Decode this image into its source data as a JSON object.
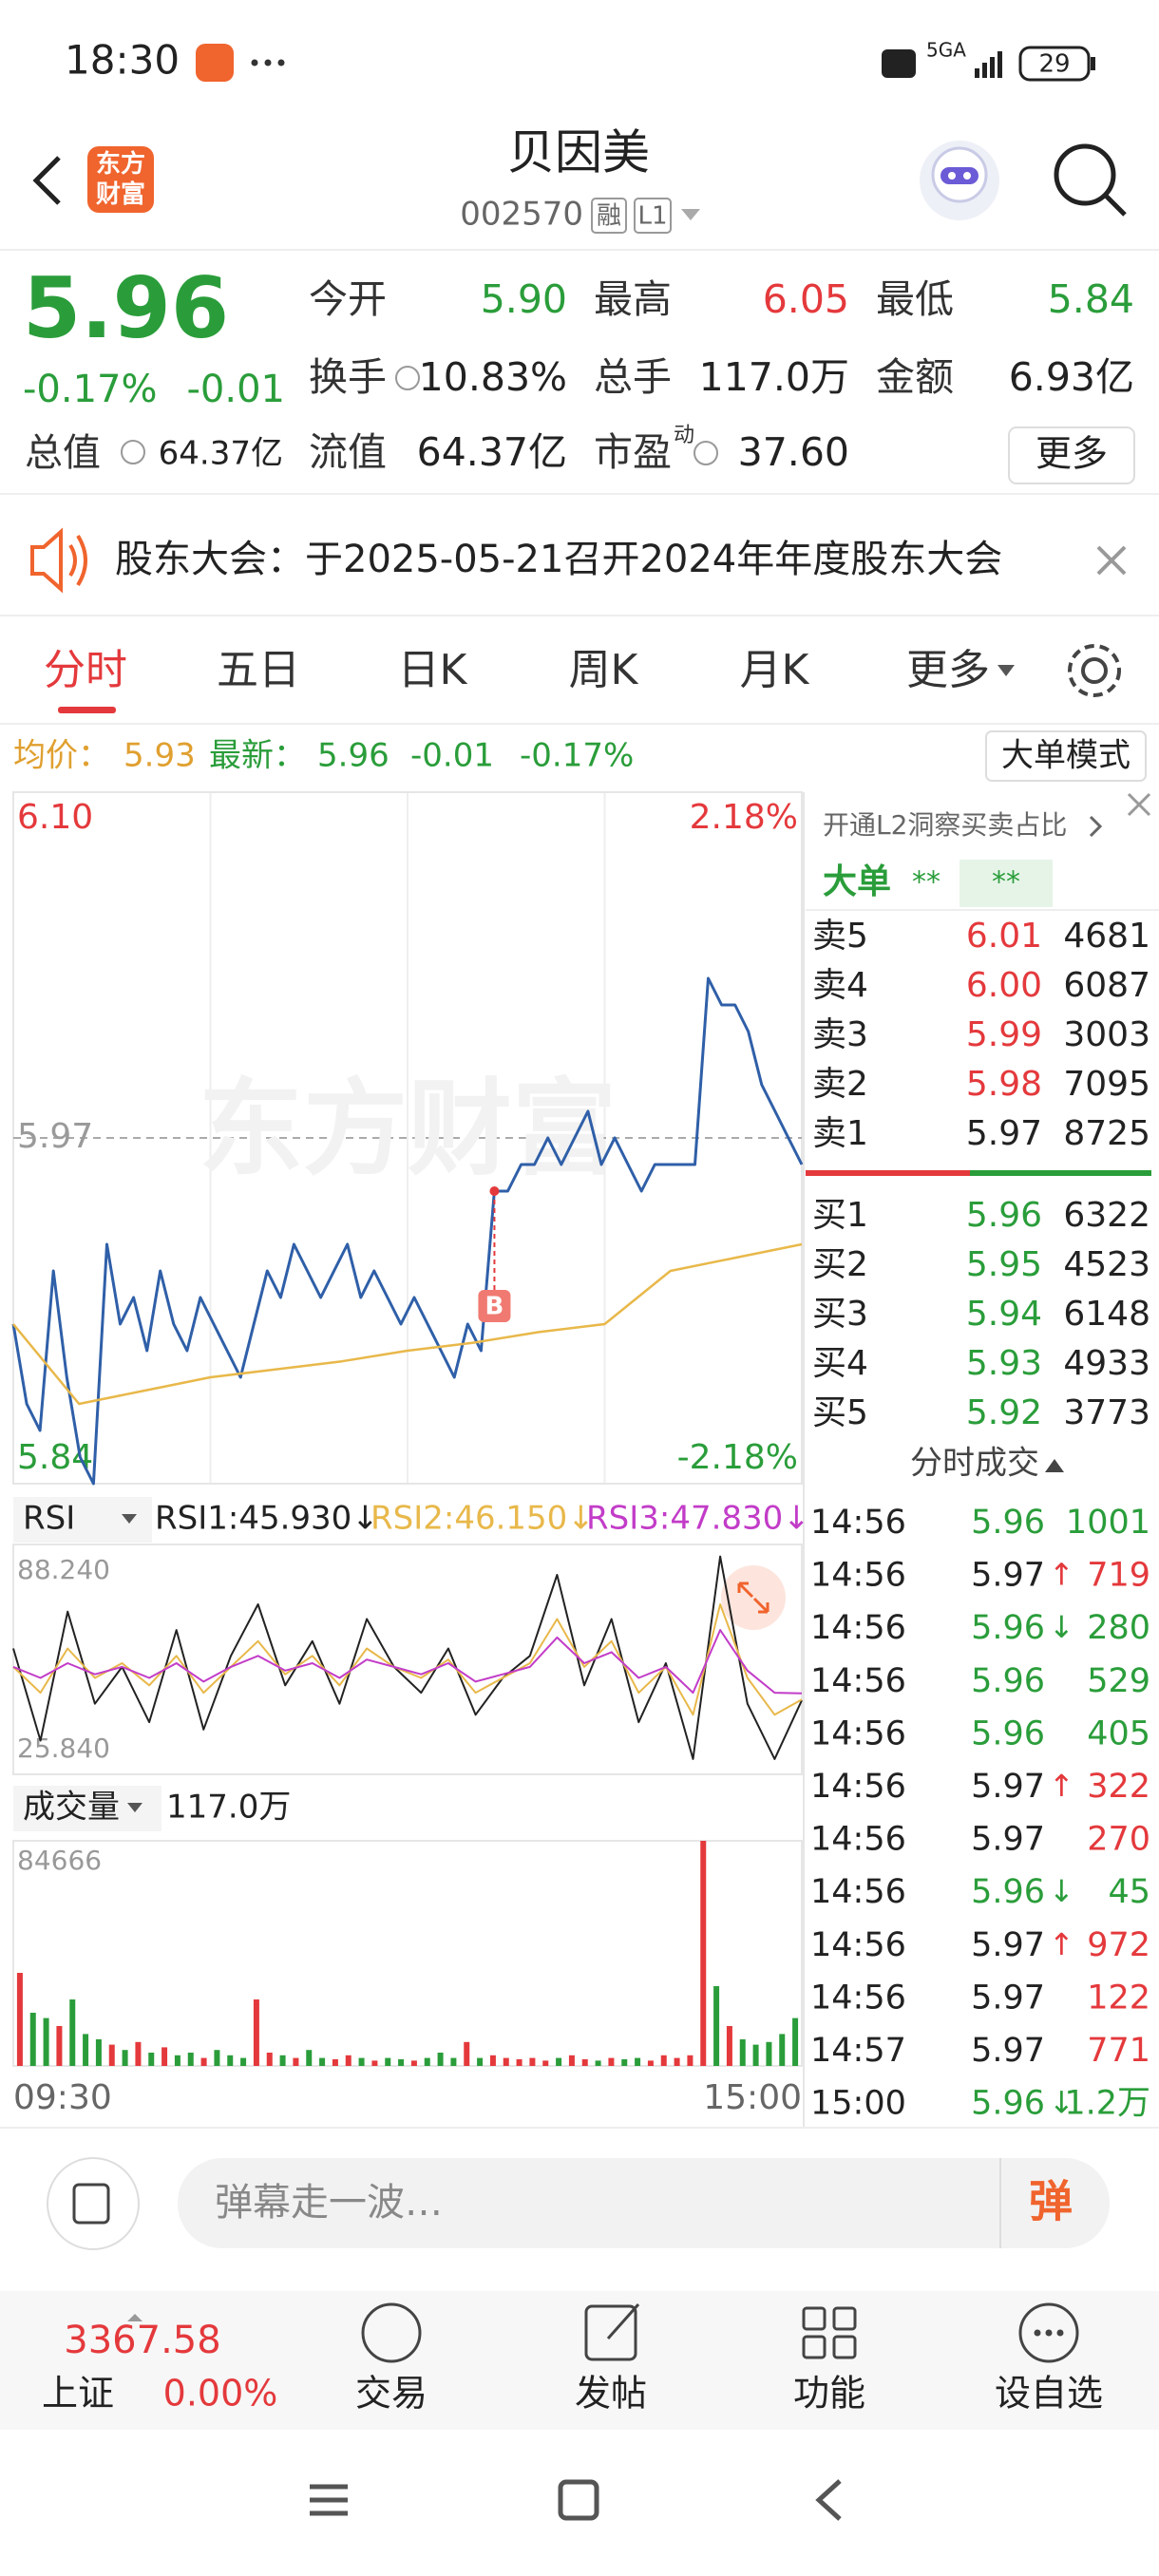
{
  "status_bar": {
    "time": "18:30",
    "network": "5GA",
    "battery": "29"
  },
  "header": {
    "logo": "东方财富",
    "title": "贝因美",
    "code": "002570",
    "badges": [
      "融",
      "L1"
    ]
  },
  "quote": {
    "price": "5.96",
    "change_pct": "-0.17%",
    "change": "-0.01",
    "total_value_label": "总值",
    "total_value": "64.37亿",
    "more": "更多",
    "fields": [
      {
        "label": "今开",
        "value": "5.90",
        "color": "#2a9d3a"
      },
      {
        "label": "最高",
        "value": "6.05",
        "color": "#e4393c"
      },
      {
        "label": "最低",
        "value": "5.84",
        "color": "#2a9d3a"
      },
      {
        "label": "换手",
        "value": "10.83%",
        "color": "#222222"
      },
      {
        "label": "总手",
        "value": "117.0万",
        "color": "#222222"
      },
      {
        "label": "金额",
        "value": "6.93亿",
        "color": "#222222"
      },
      {
        "label": "流值",
        "value": "64.37亿",
        "color": "#222222"
      },
      {
        "label": "市盈",
        "superscript": "动",
        "value": "37.60",
        "color": "#222222"
      }
    ]
  },
  "notice": {
    "text": "股东大会：于2025-05-21召开2024年年度股东大会"
  },
  "tabs": [
    "分时",
    "五日",
    "日K",
    "周K",
    "月K",
    "更多"
  ],
  "info": {
    "avg_label": "均价：",
    "avg": "5.93",
    "latest_label": "最新：",
    "latest": "5.96",
    "change": "-0.01",
    "change_pct": "-0.17%",
    "mode_button": "大单模式"
  },
  "order_book": {
    "header": "开通L2洞察买卖占比",
    "big_order": "大单",
    "masked": [
      "**",
      "**"
    ],
    "asks": [
      {
        "label": "卖5",
        "price": "6.01",
        "volume": "4681",
        "color": "#e4393c"
      },
      {
        "label": "卖4",
        "price": "6.00",
        "volume": "6087",
        "color": "#e4393c"
      },
      {
        "label": "卖3",
        "price": "5.99",
        "volume": "3003",
        "color": "#e4393c"
      },
      {
        "label": "卖2",
        "price": "5.98",
        "volume": "7095",
        "color": "#e4393c"
      },
      {
        "label": "卖1",
        "price": "5.97",
        "volume": "8725",
        "color": "#222222"
      }
    ],
    "bids": [
      {
        "label": "买1",
        "price": "5.96",
        "volume": "6322",
        "color": "#2a9d3a"
      },
      {
        "label": "买2",
        "price": "5.95",
        "volume": "4523",
        "color": "#2a9d3a"
      },
      {
        "label": "买3",
        "price": "5.94",
        "volume": "6148",
        "color": "#2a9d3a"
      },
      {
        "label": "买4",
        "price": "5.93",
        "volume": "4933",
        "color": "#2a9d3a"
      },
      {
        "label": "买5",
        "price": "5.92",
        "volume": "3773",
        "color": "#2a9d3a"
      }
    ]
  },
  "trades": {
    "title": "分时成交",
    "rows": [
      {
        "time": "14:56",
        "price": "5.96",
        "volume": "1001",
        "price_color": "#2a9d3a",
        "color": "#2a9d3a"
      },
      {
        "time": "14:56",
        "price": "5.97",
        "arrow": "↑",
        "volume": "719",
        "price_color": "#222222",
        "color": "#e4393c"
      },
      {
        "time": "14:56",
        "price": "5.96",
        "arrow": "↓",
        "volume": "280",
        "price_color": "#2a9d3a",
        "color": "#2a9d3a"
      },
      {
        "time": "14:56",
        "price": "5.96",
        "volume": "529",
        "price_color": "#2a9d3a",
        "color": "#2a9d3a"
      },
      {
        "time": "14:56",
        "price": "5.96",
        "volume": "405",
        "price_color": "#2a9d3a",
        "color": "#2a9d3a"
      },
      {
        "time": "14:56",
        "price": "5.97",
        "arrow": "↑",
        "volume": "322",
        "price_color": "#222222",
        "color": "#e4393c"
      },
      {
        "time": "14:56",
        "price": "5.97",
        "volume": "270",
        "price_color": "#222222",
        "color": "#e4393c"
      },
      {
        "time": "14:56",
        "price": "5.96",
        "arrow": "↓",
        "volume": "45",
        "price_color": "#2a9d3a",
        "color": "#2a9d3a"
      },
      {
        "time": "14:56",
        "price": "5.97",
        "arrow": "↑",
        "volume": "972",
        "price_color": "#222222",
        "color": "#e4393c"
      },
      {
        "time": "14:56",
        "price": "5.97",
        "volume": "122",
        "price_color": "#222222",
        "color": "#e4393c"
      },
      {
        "time": "14:57",
        "price": "5.97",
        "volume": "771",
        "price_color": "#222222",
        "color": "#e4393c"
      },
      {
        "time": "15:00",
        "price": "5.96",
        "arrow": "↓",
        "volume": "1.2万",
        "price_color": "#2a9d3a",
        "color": "#2a9d3a"
      }
    ]
  },
  "danmaku": {
    "placeholder": "弹幕走一波…",
    "button": "弹"
  },
  "bottom_nav": {
    "index_value": "3367.58",
    "index_name": "上证",
    "index_change": "0.00%",
    "items": [
      "交易",
      "发帖",
      "功能",
      "设自选"
    ]
  },
  "chart_data": [
    {
      "type": "line",
      "watermark": "东方财富",
      "ylim": [
        5.84,
        6.1
      ],
      "yticks": [
        {
          "value": 6.1,
          "label": "6.10"
        },
        5.97,
        5.84
      ],
      "ytick_colors": [
        "#e4393c",
        "#9a9a9a",
        "#2a9d3a"
      ],
      "y2lim": [
        -2.18,
        2.18
      ],
      "y2ticks": [
        {
          "value": 2.18,
          "label": "2.18%"
        },
        {
          "value": -2.18,
          "label": "-2.18%"
        }
      ],
      "y2tick_colors": [
        "#e4393c",
        "#2a9d3a"
      ],
      "series": [
        {
          "color": "#2f5fa8",
          "values": [
            5.9,
            5.87,
            5.86,
            5.92,
            5.88,
            5.85,
            5.84,
            5.93,
            5.9,
            5.91,
            5.89,
            5.92,
            5.9,
            5.89,
            5.91,
            5.9,
            5.89,
            5.88,
            5.9,
            5.92,
            5.91,
            5.93,
            5.92,
            5.91,
            5.92,
            5.93,
            5.91,
            5.92,
            5.91,
            5.9,
            5.91,
            5.9,
            5.89,
            5.88,
            5.9,
            5.89,
            5.95,
            5.95,
            5.96,
            5.96,
            5.97,
            5.96,
            5.97,
            5.98,
            5.96,
            5.97,
            5.96,
            5.95,
            5.96,
            5.96,
            5.96,
            5.96,
            6.03,
            6.02,
            6.02,
            6.01,
            5.99,
            5.98,
            5.97,
            5.96
          ]
        },
        {
          "color": "#e8b84a",
          "values": [
            5.9,
            5.87,
            5.875,
            5.88,
            5.883,
            5.886,
            5.89,
            5.893,
            5.897,
            5.9,
            5.92,
            5.925,
            5.93
          ]
        }
      ],
      "markers": [
        {
          "series": 0,
          "index": 36,
          "label": "B"
        }
      ]
    },
    {
      "type": "line",
      "selector": "RSI",
      "ylim": [
        25.84,
        88.24
      ],
      "yticks": [
        {
          "value": 88.24,
          "label": "88.240"
        },
        {
          "value": 25.84,
          "label": "25.840"
        }
      ],
      "series": [
        {
          "name": "RSI1:45.930↓",
          "color": "#222222",
          "values": [
            60,
            35,
            70,
            45,
            55,
            40,
            65,
            38,
            58,
            72,
            50,
            62,
            45,
            68,
            55,
            48,
            60,
            42,
            52,
            58,
            80,
            50,
            68,
            40,
            56,
            30,
            85,
            45,
            30,
            45.93
          ]
        },
        {
          "name": "RSI2:46.150↓",
          "color": "#e8b84a",
          "values": [
            55,
            48,
            60,
            52,
            56,
            50,
            58,
            48,
            55,
            62,
            53,
            58,
            50,
            60,
            55,
            52,
            57,
            48,
            52,
            56,
            68,
            55,
            62,
            48,
            55,
            42,
            72,
            52,
            42,
            46.15
          ]
        },
        {
          "name": "RSI3:47.830↓",
          "color": "#c23cc8",
          "values": [
            55,
            52,
            56,
            53,
            55,
            52,
            56,
            51,
            55,
            58,
            54,
            56,
            52,
            57,
            55,
            53,
            56,
            51,
            53,
            55,
            63,
            56,
            59,
            52,
            55,
            48,
            65,
            54,
            48,
            47.83
          ]
        }
      ]
    },
    {
      "type": "bar",
      "selector": "成交量",
      "total": "117.0万",
      "ylim": [
        0,
        84666
      ],
      "yticks": [
        84666
      ],
      "x_labels": [
        "09:30",
        "15:00"
      ],
      "up_color": "#e4393c",
      "down_color": "#2a9d3a",
      "values": [
        35000,
        20000,
        18000,
        15000,
        25000,
        12000,
        10000,
        8000,
        6000,
        9000,
        5000,
        7000,
        4000,
        5000,
        3000,
        6000,
        4000,
        3000,
        25000,
        5000,
        4000,
        3000,
        6000,
        3000,
        2500,
        4000,
        3000,
        2000,
        3000,
        2500,
        2000,
        3000,
        5000,
        3000,
        9000,
        3000,
        4000,
        3000,
        2500,
        3000,
        2000,
        3000,
        4000,
        2500,
        2000,
        3000,
        2500,
        3000,
        2000,
        4000,
        3000,
        4000,
        84666,
        30000,
        15000,
        10000,
        8000,
        9000,
        12000,
        18000
      ]
    }
  ]
}
